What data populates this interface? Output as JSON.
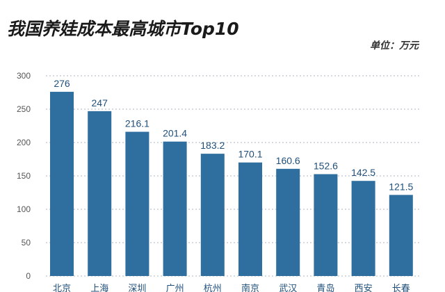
{
  "chart_data": {
    "type": "bar",
    "title": "我国养娃成本最高城市Top10",
    "unit_label": "单位：万元",
    "categories": [
      "北京",
      "上海",
      "深圳",
      "广州",
      "杭州",
      "南京",
      "武汉",
      "青岛",
      "西安",
      "长春"
    ],
    "values": [
      276,
      247,
      216.1,
      201.4,
      183.2,
      170.1,
      160.6,
      152.6,
      142.5,
      121.5
    ],
    "value_labels": [
      "276",
      "247",
      "216.1",
      "201.4",
      "183.2",
      "170.1",
      "160.6",
      "152.6",
      "142.5",
      "121.5"
    ],
    "yticks": [
      0,
      50,
      100,
      150,
      200,
      250,
      300
    ],
    "ylim": [
      0,
      300
    ],
    "grid": true,
    "legend": "none",
    "bar_color": "#2f6f9f"
  }
}
